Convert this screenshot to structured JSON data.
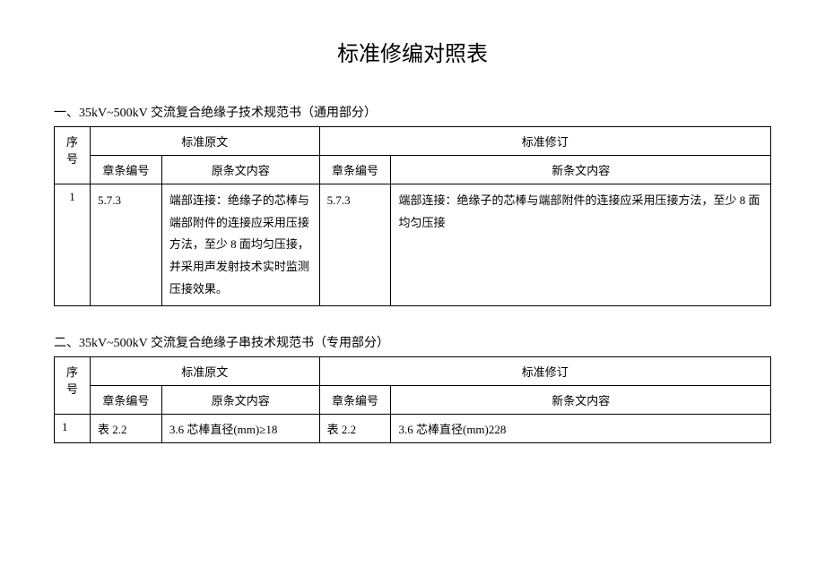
{
  "title": "标准修编对照表",
  "section1": {
    "heading": "一、35kV~500kV 交流复合绝缘子技术规范书（通用部分）",
    "header": {
      "seq": "序号",
      "orig_group": "标准原文",
      "rev_group": "标准修订",
      "chapter_no": "章条编号",
      "orig_content": "原条文内容",
      "new_content": "新条文内容"
    },
    "row": {
      "seq": "1",
      "chap_orig": "5.7.3",
      "orig": "端部连接：绝缘子的芯棒与端部附件的连接应采用压接方法，至少 8 面均匀压接，并采用声发射技术实时监测压接效果。",
      "chap_rev": "5.7.3",
      "new": "端部连接：绝缘子的芯棒与端部附件的连接应采用压接方法，至少 8 面均匀压接"
    }
  },
  "section2": {
    "heading": "二、35kV~500kV 交流复合绝缘子串技术规范书（专用部分）",
    "header": {
      "seq": "序号",
      "orig_group": "标准原文",
      "rev_group": "标准修订",
      "chapter_no": "章条编号",
      "orig_content": "原条文内容",
      "new_content": "新条文内容"
    },
    "row": {
      "seq": "1",
      "chap_orig": "表 2.2",
      "orig": "3.6 芯棒直径(mm)≥18",
      "chap_rev": "表 2.2",
      "new": "3.6 芯棒直径(mm)228"
    }
  }
}
